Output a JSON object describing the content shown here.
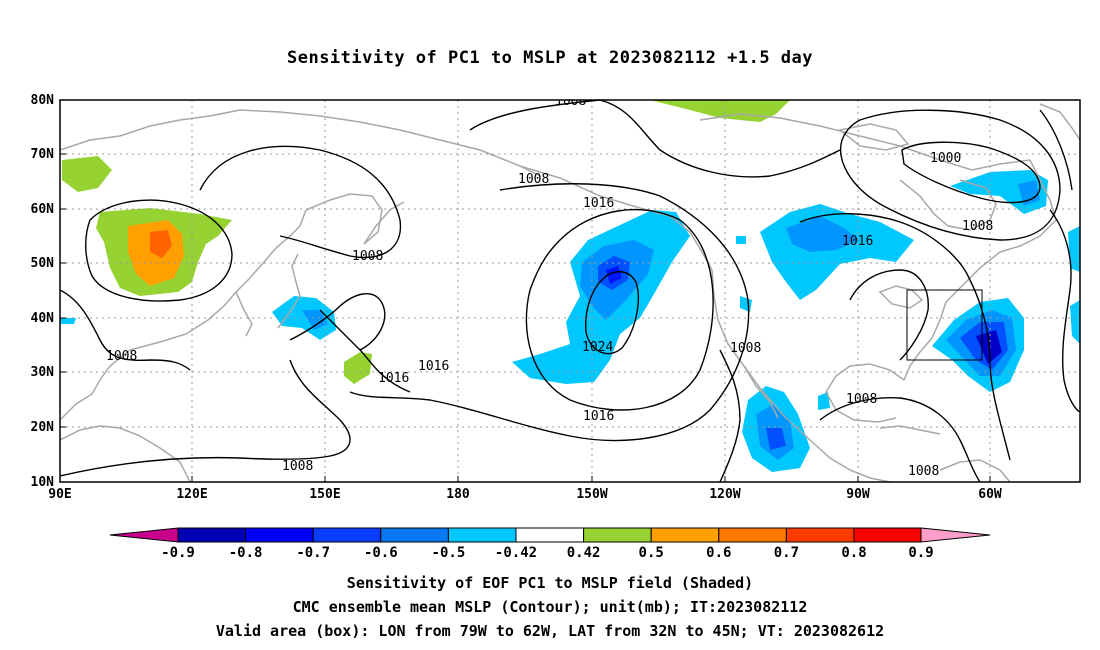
{
  "title": "Sensitivity of PC1 to MSLP at 2023082112 +1.5 day",
  "map": {
    "lon_labels": [
      "90E",
      "120E",
      "150E",
      "180",
      "150W",
      "120W",
      "90W",
      "60W"
    ],
    "lat_labels": [
      "80N",
      "70N",
      "60N",
      "50N",
      "40N",
      "30N",
      "20N",
      "10N"
    ],
    "contour_labels": [
      "1008",
      "1008",
      "1008",
      "1008",
      "1008",
      "1008",
      "1008",
      "1008",
      "1000",
      "1008",
      "1016",
      "1016",
      "1016",
      "1016",
      "1016",
      "1024"
    ],
    "colors": {
      "coastline": "#a8a8a8",
      "contour": "#000000",
      "grid": "#9a9a9a",
      "neg_05": "#00c8ff",
      "neg_06": "#0096ff",
      "neg_07": "#0050ff",
      "neg_08": "#0014ff",
      "neg_09": "#0000c8",
      "pos_05": "#96d232",
      "pos_06": "#ffa000",
      "pos_07": "#ff6400",
      "pos_08": "#ff3200"
    }
  },
  "colorbar": {
    "labels": [
      "-0.9",
      "-0.8",
      "-0.7",
      "-0.6",
      "-0.5",
      "-0.42",
      "0.42",
      "0.5",
      "0.6",
      "0.7",
      "0.8",
      "0.9"
    ],
    "colors": [
      "#c8008c",
      "#0000b4",
      "#0000ff",
      "#0a3cff",
      "#0a78f0",
      "#00c8ff",
      "#ffffff",
      "#96d232",
      "#ffa000",
      "#ff7800",
      "#ff3c00",
      "#ff0000",
      "#ff9ec8"
    ]
  },
  "captions": [
    "Sensitivity of EOF PC1 to MSLP field (Shaded)",
    "CMC ensemble mean MSLP (Contour); unit(mb); IT:2023082112",
    "Valid area (box): LON from 79W to 62W, LAT from 32N to 45N; VT: 2023082612"
  ]
}
